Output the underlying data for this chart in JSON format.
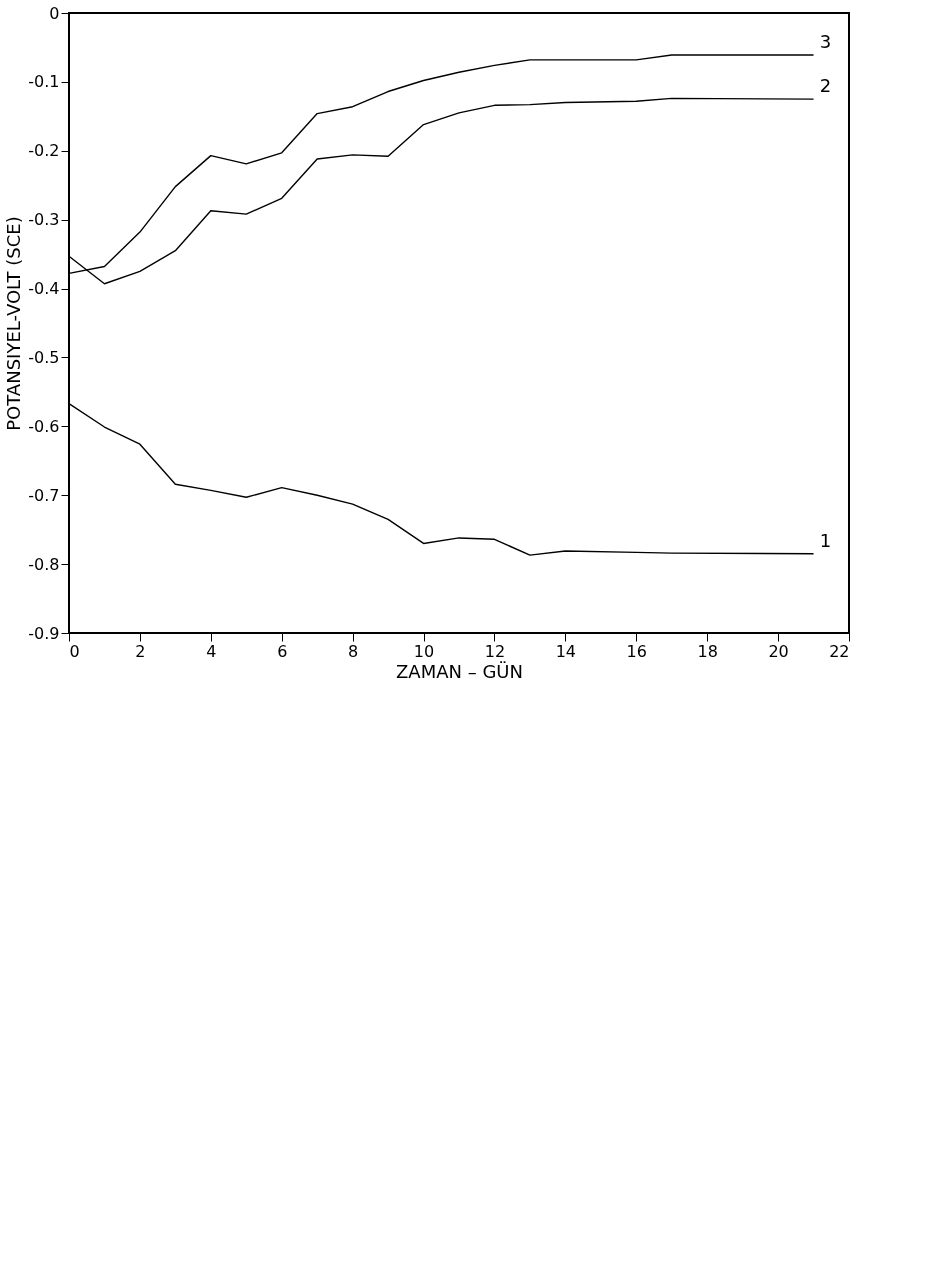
{
  "chart_data": {
    "type": "line",
    "xlabel": "ZAMAN – GÜN",
    "ylabel": "POTANSIYEL-VOLT (SCE)",
    "x": [
      0,
      1,
      2,
      3,
      4,
      5,
      6,
      7,
      8,
      9,
      10,
      11,
      12,
      13,
      14,
      16,
      17,
      21
    ],
    "series": [
      {
        "name": "1",
        "color": "#000000",
        "values": [
          -0.567,
          -0.601,
          -0.626,
          -0.684,
          -0.693,
          -0.703,
          -0.689,
          -0.7,
          -0.713,
          -0.735,
          -0.77,
          -0.762,
          -0.764,
          -0.787,
          -0.781,
          -0.783,
          -0.784,
          -0.785
        ]
      },
      {
        "name": "2",
        "color": "#000000",
        "values": [
          -0.353,
          -0.393,
          -0.375,
          -0.345,
          -0.287,
          -0.292,
          -0.269,
          -0.212,
          -0.206,
          -0.208,
          -0.162,
          -0.145,
          -0.134,
          -0.133,
          -0.13,
          -0.128,
          -0.124,
          -0.125
        ]
      },
      {
        "name": "3",
        "color": "#000000",
        "values": [
          -0.378,
          -0.368,
          -0.318,
          -0.252,
          -0.207,
          -0.219,
          -0.203,
          -0.146,
          -0.136,
          -0.114,
          -0.098,
          -0.086,
          -0.076,
          -0.068,
          -0.068,
          -0.068,
          -0.061,
          -0.061
        ]
      }
    ],
    "xlim": [
      0,
      22
    ],
    "xticks": [
      0,
      2,
      4,
      6,
      8,
      10,
      12,
      14,
      16,
      18,
      20,
      22
    ],
    "ylim": [
      -0.9,
      0
    ],
    "yticks": [
      0,
      -0.1,
      -0.2,
      -0.3,
      -0.4,
      -0.5,
      -0.6,
      -0.7,
      -0.8,
      -0.9
    ],
    "grid": false,
    "legend": false,
    "marker": "none",
    "line_style": "solid"
  }
}
